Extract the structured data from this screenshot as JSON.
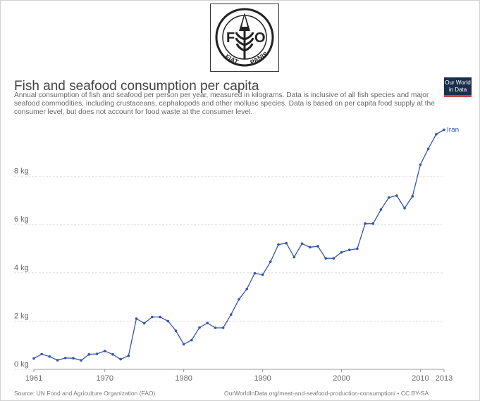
{
  "logo": {
    "letters": "F A O",
    "motto_left": "FIAT",
    "motto_right": "PANIS"
  },
  "header": {
    "title": "Fish and seafood consumption per capita",
    "subtitle": "Annual consumption of fish and seafood per person per year, measured in kilograms. Data is inclusive of all fish species and major seafood commodities, including crustaceans, cephalopods and other mollusc species. Data is based on per capita food supply at the consumer level, but does not account for food waste at the consumer level."
  },
  "badge": {
    "line1": "Our World",
    "line2": "in Data",
    "bg": "#1a2e4d",
    "accent": "#c94545"
  },
  "footer": {
    "source": "Source: UN Food and Agriculture Organization (FAO)",
    "link": "OurWorldInData.org/meat-and-seafood-production-consumption/ • CC BY-SA"
  },
  "chart_data": {
    "type": "line",
    "xlabel": "",
    "ylabel": "",
    "xlim": [
      1961,
      2013
    ],
    "ylim": [
      0,
      10
    ],
    "x_ticks": [
      "1961",
      "1970",
      "1980",
      "1990",
      "2000",
      "2010",
      "2013"
    ],
    "x_tick_values": [
      1961,
      1970,
      1980,
      1990,
      2000,
      2010,
      2013
    ],
    "y_ticks": [
      "0 kg",
      "2 kg",
      "4 kg",
      "6 kg",
      "8 kg"
    ],
    "y_tick_values": [
      0,
      2,
      4,
      6,
      8
    ],
    "grid": true,
    "line_color": "#3355aa",
    "series": [
      {
        "name": "Iran",
        "x": [
          1961,
          1962,
          1963,
          1964,
          1965,
          1966,
          1967,
          1968,
          1969,
          1970,
          1971,
          1972,
          1973,
          1974,
          1975,
          1976,
          1977,
          1978,
          1979,
          1980,
          1981,
          1982,
          1983,
          1984,
          1985,
          1986,
          1987,
          1988,
          1989,
          1990,
          1991,
          1992,
          1993,
          1994,
          1995,
          1996,
          1997,
          1998,
          1999,
          2000,
          2001,
          2002,
          2003,
          2004,
          2005,
          2006,
          2007,
          2008,
          2009,
          2010,
          2011,
          2012,
          2013
        ],
        "y": [
          0.45,
          0.63,
          0.53,
          0.38,
          0.47,
          0.46,
          0.37,
          0.62,
          0.64,
          0.76,
          0.62,
          0.42,
          0.56,
          2.1,
          1.91,
          2.17,
          2.17,
          2.0,
          1.6,
          1.04,
          1.21,
          1.73,
          1.92,
          1.72,
          1.72,
          2.27,
          2.9,
          3.33,
          3.98,
          3.92,
          4.46,
          5.17,
          5.23,
          4.65,
          5.21,
          5.06,
          5.1,
          4.6,
          4.6,
          4.85,
          4.95,
          5.0,
          6.04,
          6.04,
          6.62,
          7.12,
          7.2,
          6.68,
          7.17,
          8.48,
          9.14,
          9.74,
          9.93
        ]
      }
    ]
  }
}
